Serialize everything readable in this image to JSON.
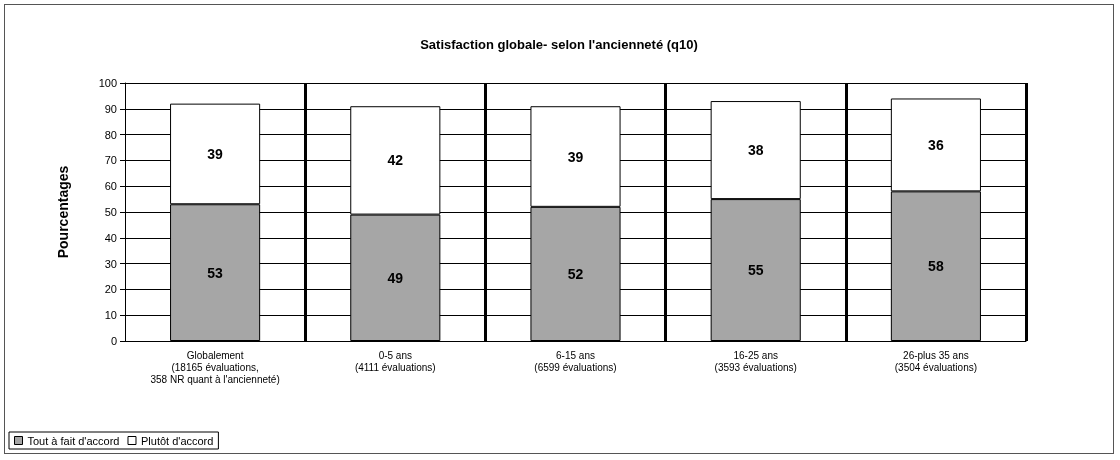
{
  "chart_data": {
    "type": "bar",
    "title": "Satisfaction globale- selon l'ancienneté (q10)",
    "ylabel": "Pourcentages",
    "categories": [
      "Globalement\n(18165 évaluations,\n358 NR quant à l'ancienneté)",
      "0-5 ans\n(4111 évaluations)",
      "6-15 ans\n(6599 évaluations)",
      "16-25 ans\n(3593 évaluations)",
      "26-plus 35 ans\n(3504 évaluations)"
    ],
    "series": [
      {
        "name": "Tout à fait d'accord",
        "color": "#a6a6a6",
        "values": [
          53,
          49,
          52,
          55,
          58
        ]
      },
      {
        "name": "Plutôt d'accord",
        "color": "#ffffff",
        "values": [
          39,
          42,
          39,
          38,
          36
        ]
      }
    ],
    "stacked": true,
    "data_labels": true,
    "ylim": [
      0,
      100
    ],
    "yticks": [
      0,
      10,
      20,
      30,
      40,
      50,
      60,
      70,
      80,
      90,
      100
    ],
    "grid": "y",
    "legend": "bottom left"
  }
}
